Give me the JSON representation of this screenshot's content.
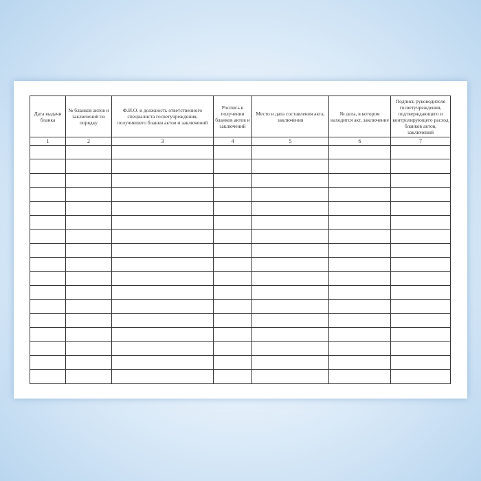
{
  "table": {
    "headers": [
      "Дата выдачи бланка",
      "№ бланков актов и заключений по порядку",
      "Ф.И.О. и должность ответственного специалиста госветучреждения, получившего бланки актов и заключений",
      "Роспись в получении бланков актов и заключений",
      "Место и дата составления акта, заключения",
      "№ дела, в котором находится акт, заключение",
      "Подпись руководителя госветучреждения, подтверждающего и контролирующего расход бланков актов, заключений"
    ],
    "column_numbers": [
      "1",
      "2",
      "3",
      "4",
      "5",
      "6",
      "7"
    ],
    "empty_rows": 17
  }
}
